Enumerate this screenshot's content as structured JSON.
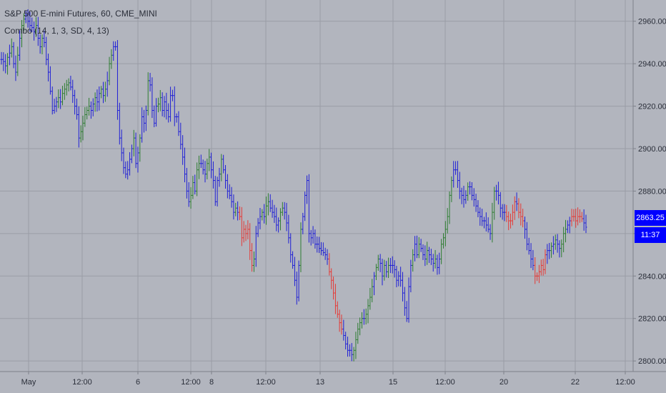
{
  "chart_data": {
    "type": "bar",
    "title": "S&P 500 E-mini Futures, 60, CME_MINI",
    "indicator": "Combo (14, 1, 3, SD, 4, 13)",
    "y_ticks": [
      2800,
      2820,
      2840,
      2860,
      2880,
      2900,
      2920,
      2940,
      2960
    ],
    "y_tick_labels": [
      "2800.00",
      "2820.00",
      "2840.00",
      "2860.00",
      "2880.00",
      "2900.00",
      "2920.00",
      "2940.00",
      "2960.00"
    ],
    "ylim": [
      2795,
      2970
    ],
    "x_tick_labels": [
      "May",
      "12:00",
      "6",
      "12:00",
      "8",
      "12:00",
      "13",
      "15",
      "12:00",
      "20",
      "22",
      "12:00"
    ],
    "last_price": "2863.25",
    "countdown": "11:37",
    "grid": true,
    "colors": {
      "up": "#2e7d32",
      "neutral": "#1f1fd6",
      "down": "#e53935",
      "background": "#b2b5be",
      "grid": "#9a9da6",
      "label_bg": "#0000ff"
    },
    "price_path": [
      2942,
      2941,
      2939,
      2943,
      2945,
      2948,
      2940,
      2936,
      2944,
      2952,
      2958,
      2961,
      2963,
      2960,
      2958,
      2957,
      2955,
      2958,
      2952,
      2948,
      2952,
      2950,
      2942,
      2936,
      2927,
      2918,
      2920,
      2922,
      2924,
      2922,
      2926,
      2928,
      2930,
      2931,
      2929,
      2925,
      2920,
      2916,
      2905,
      2908,
      2912,
      2916,
      2918,
      2920,
      2918,
      2921,
      2924,
      2922,
      2926,
      2928,
      2925,
      2928,
      2932,
      2940,
      2944,
      2948,
      2948,
      2918,
      2905,
      2898,
      2891,
      2888,
      2890,
      2895,
      2900,
      2905,
      2893,
      2898,
      2905,
      2915,
      2912,
      2918,
      2932,
      2930,
      2918,
      2912,
      2920,
      2921,
      2924,
      2918,
      2922,
      2918,
      2915,
      2925,
      2925,
      2915,
      2915,
      2908,
      2902,
      2896,
      2888,
      2880,
      2875,
      2878,
      2884,
      2880,
      2890,
      2893,
      2893,
      2890,
      2888,
      2893,
      2896,
      2890,
      2885,
      2875,
      2885,
      2888,
      2895,
      2890,
      2885,
      2880,
      2878,
      2875,
      2870,
      2872,
      2870,
      2868,
      2858,
      2862,
      2860,
      2862,
      2852,
      2845,
      2848,
      2860,
      2865,
      2868,
      2870,
      2868,
      2873,
      2875,
      2872,
      2870,
      2868,
      2864,
      2866,
      2870,
      2872,
      2870,
      2865,
      2858,
      2850,
      2845,
      2838,
      2830,
      2845,
      2862,
      2868,
      2878,
      2885,
      2860,
      2858,
      2860,
      2855,
      2855,
      2853,
      2852,
      2851,
      2850,
      2848,
      2842,
      2838,
      2832,
      2826,
      2822,
      2818,
      2815,
      2812,
      2808,
      2805,
      2805,
      2803,
      2805,
      2810,
      2815,
      2818,
      2820,
      2820,
      2822,
      2826,
      2830,
      2835,
      2840,
      2844,
      2848,
      2846,
      2840,
      2845,
      2842,
      2845,
      2845,
      2845,
      2843,
      2838,
      2840,
      2838,
      2832,
      2825,
      2820,
      2835,
      2845,
      2850,
      2855,
      2850,
      2855,
      2853,
      2850,
      2848,
      2852,
      2850,
      2848,
      2846,
      2848,
      2844,
      2848,
      2855,
      2858,
      2862,
      2868,
      2878,
      2885,
      2890,
      2890,
      2885,
      2880,
      2878,
      2876,
      2878,
      2882,
      2882,
      2878,
      2876,
      2873,
      2870,
      2868,
      2866,
      2866,
      2864,
      2862,
      2860,
      2870,
      2880,
      2880,
      2878,
      2872,
      2870,
      2870,
      2868,
      2866,
      2866,
      2870,
      2875,
      2874,
      2870,
      2868,
      2866,
      2862,
      2855,
      2852,
      2848,
      2845,
      2840,
      2840,
      2842,
      2845,
      2843,
      2850,
      2852,
      2852,
      2854,
      2855,
      2857,
      2855,
      2853,
      2855,
      2860,
      2862,
      2864,
      2866,
      2868,
      2868,
      2866,
      2868,
      2868,
      2867,
      2865,
      2863
    ]
  }
}
